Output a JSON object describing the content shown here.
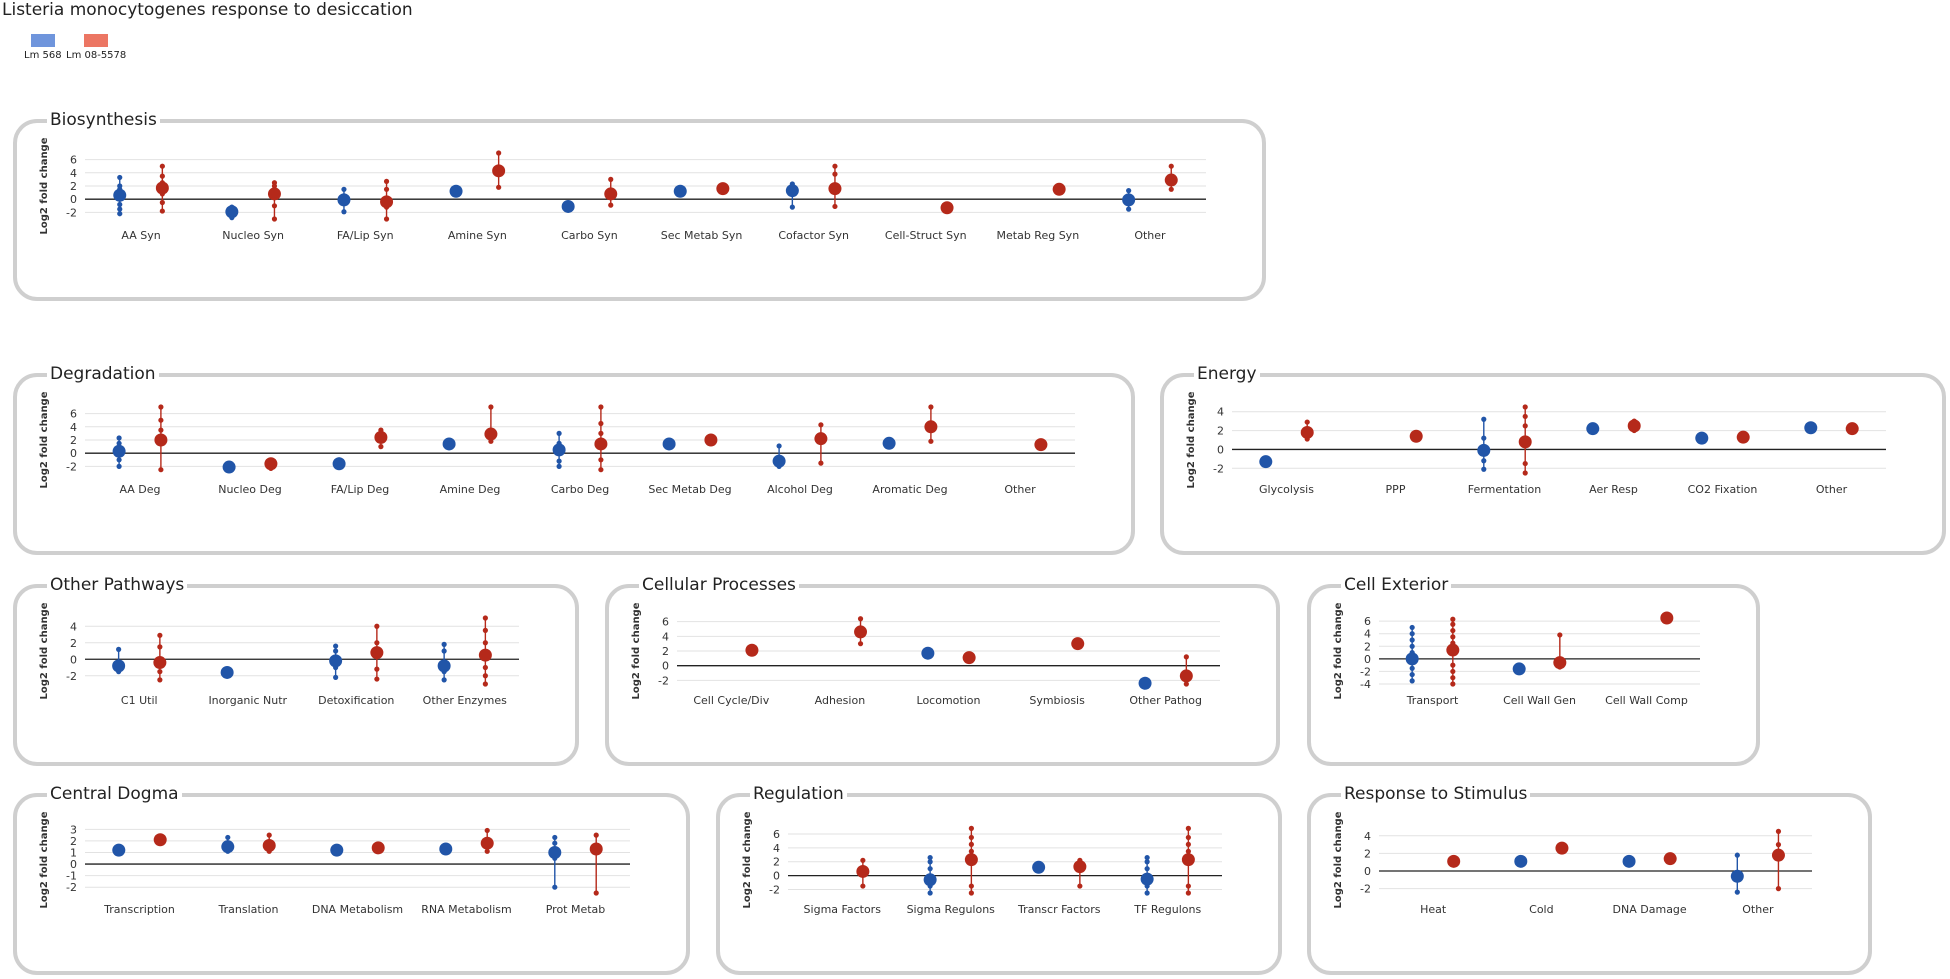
{
  "title": "Listeria monocytogenes response to desiccation",
  "colors": {
    "lm568": "#2155a8",
    "lm08": "#b5291a",
    "lm568_legend": "#6f95dc",
    "lm08_legend": "#ec7663",
    "grid": "#e2e2e2",
    "frame": "#cfcfcf"
  },
  "legend": [
    {
      "label": "Lm 568",
      "color": "#6f95dc"
    },
    {
      "label": "Lm 08-5578",
      "color": "#ec7663"
    }
  ],
  "chart_data": [
    {
      "type": "scatter",
      "title": "Biosynthesis",
      "ylabel": "Log2 fold change",
      "ylim": [
        -3,
        7
      ],
      "yticks": [
        -2,
        0,
        2,
        4,
        6
      ],
      "categories": [
        "AA Syn",
        "Nucleo Syn",
        "FA/Lip Syn",
        "Amine Syn",
        "Carbo Syn",
        "Sec Metab Syn",
        "Cofactor Syn",
        "Cell-Struct Syn",
        "Metab Reg Syn",
        "Other"
      ],
      "series": [
        {
          "name": "Lm 568",
          "values": [
            {
              "mean": 0.6,
              "points": [
                -2.2,
                -1.5,
                -0.8,
                0.0,
                0.5,
                1.0,
                1.5,
                2.0,
                3.3
              ]
            },
            {
              "mean": -1.9,
              "points": [
                -2.8,
                -1.2
              ]
            },
            {
              "mean": -0.1,
              "points": [
                -1.9,
                -0.6,
                0.5,
                1.5
              ]
            },
            {
              "mean": 1.2,
              "points": []
            },
            {
              "mean": -1.1,
              "points": []
            },
            {
              "mean": 1.2,
              "points": []
            },
            {
              "mean": 1.3,
              "points": [
                -1.2,
                2.3
              ]
            },
            null,
            null,
            {
              "mean": -0.1,
              "points": [
                -1.5,
                1.3
              ]
            }
          ]
        },
        {
          "name": "Lm 08-5578",
          "values": [
            {
              "mean": 1.7,
              "points": [
                -1.8,
                -0.5,
                0.8,
                2.5,
                3.5,
                5.0
              ]
            },
            {
              "mean": 0.8,
              "points": [
                -3.0,
                -1.0,
                2.0,
                2.5
              ]
            },
            {
              "mean": -0.4,
              "points": [
                -3.0,
                -1.2,
                1.5,
                2.7
              ]
            },
            {
              "mean": 4.3,
              "points": [
                1.8,
                7.0
              ]
            },
            {
              "mean": 0.8,
              "points": [
                -0.9,
                3.0
              ]
            },
            {
              "mean": 1.6,
              "points": []
            },
            {
              "mean": 1.6,
              "points": [
                -1.1,
                3.8,
                5.0
              ]
            },
            {
              "mean": -1.3,
              "points": []
            },
            {
              "mean": 1.5,
              "points": []
            },
            {
              "mean": 2.9,
              "points": [
                1.5,
                5.0
              ]
            }
          ]
        }
      ]
    },
    {
      "type": "scatter",
      "title": "Degradation",
      "ylabel": "Log2 fold change",
      "ylim": [
        -3,
        7
      ],
      "yticks": [
        -2,
        0,
        2,
        4,
        6
      ],
      "categories": [
        "AA Deg",
        "Nucleo Deg",
        "FA/Lip Deg",
        "Amine Deg",
        "Carbo Deg",
        "Sec Metab Deg",
        "Alcohol Deg",
        "Aromatic Deg",
        "Other"
      ],
      "series": [
        {
          "name": "Lm 568",
          "values": [
            {
              "mean": 0.3,
              "points": [
                -2.0,
                -1.0,
                0.8,
                1.5,
                2.3
              ]
            },
            {
              "mean": -2.1,
              "points": []
            },
            {
              "mean": -1.6,
              "points": [
                -2.0,
                -1.0
              ]
            },
            {
              "mean": 1.4,
              "points": []
            },
            {
              "mean": 0.5,
              "points": [
                -2.0,
                -1.2,
                1.5,
                3.0
              ]
            },
            {
              "mean": 1.4,
              "points": []
            },
            {
              "mean": -1.2,
              "points": [
                -2.0,
                1.1
              ]
            },
            {
              "mean": 1.5,
              "points": []
            },
            null
          ]
        },
        {
          "name": "Lm 08-5578",
          "values": [
            {
              "mean": 2.0,
              "points": [
                -2.5,
                3.5,
                5.0,
                7.0
              ]
            },
            {
              "mean": -1.6,
              "points": [
                -2.3,
                -1.1
              ]
            },
            {
              "mean": 2.4,
              "points": [
                1.0,
                3.5
              ]
            },
            {
              "mean": 2.9,
              "points": [
                1.8,
                7.0
              ]
            },
            {
              "mean": 1.4,
              "points": [
                -2.5,
                -1.0,
                3.0,
                4.5,
                7.0
              ]
            },
            {
              "mean": 2.0,
              "points": []
            },
            {
              "mean": 2.2,
              "points": [
                -1.5,
                4.3
              ]
            },
            {
              "mean": 4.0,
              "points": [
                1.8,
                7.0
              ]
            },
            {
              "mean": 1.3,
              "points": []
            }
          ]
        }
      ]
    },
    {
      "type": "scatter",
      "title": "Energy",
      "ylabel": "Log2 fold change",
      "ylim": [
        -2.5,
        4.5
      ],
      "yticks": [
        -2,
        0,
        2,
        4
      ],
      "categories": [
        "Glycolysis",
        "PPP",
        "Fermentation",
        "Aer Resp",
        "CO2 Fixation",
        "Other"
      ],
      "series": [
        {
          "name": "Lm 568",
          "values": [
            {
              "mean": -1.3,
              "points": []
            },
            null,
            {
              "mean": -0.1,
              "points": [
                -2.1,
                -1.2,
                1.2,
                3.2
              ]
            },
            {
              "mean": 2.2,
              "points": []
            },
            {
              "mean": 1.2,
              "points": []
            },
            {
              "mean": 2.3,
              "points": []
            }
          ]
        },
        {
          "name": "Lm 08-5578",
          "values": [
            {
              "mean": 1.8,
              "points": [
                1.1,
                2.9
              ]
            },
            {
              "mean": 1.4,
              "points": []
            },
            {
              "mean": 0.8,
              "points": [
                -2.5,
                -1.5,
                2.5,
                3.5,
                4.5
              ]
            },
            {
              "mean": 2.5,
              "points": [
                2.0,
                3.0
              ]
            },
            {
              "mean": 1.3,
              "points": []
            },
            {
              "mean": 2.2,
              "points": []
            }
          ]
        }
      ]
    },
    {
      "type": "scatter",
      "title": "Other Pathways",
      "ylabel": "Log2 fold change",
      "ylim": [
        -3,
        5
      ],
      "yticks": [
        -2,
        0,
        2,
        4
      ],
      "categories": [
        "C1 Util",
        "Inorganic Nutr",
        "Detoxification",
        "Other Enzymes"
      ],
      "series": [
        {
          "name": "Lm 568",
          "values": [
            {
              "mean": -0.8,
              "points": [
                -1.5,
                1.2
              ]
            },
            {
              "mean": -1.6,
              "points": []
            },
            {
              "mean": -0.2,
              "points": [
                -2.2,
                -1.0,
                1.0,
                1.6
              ]
            },
            {
              "mean": -0.8,
              "points": [
                -2.5,
                -1.5,
                1.0,
                1.8
              ]
            }
          ]
        },
        {
          "name": "Lm 08-5578",
          "values": [
            {
              "mean": -0.4,
              "points": [
                -2.5,
                -1.5,
                1.5,
                2.9
              ]
            },
            null,
            {
              "mean": 0.8,
              "points": [
                -2.4,
                -1.2,
                2.0,
                4.0
              ]
            },
            {
              "mean": 0.5,
              "points": [
                -3.0,
                -2.0,
                -1.0,
                2.0,
                3.5,
                5.0
              ]
            }
          ]
        }
      ]
    },
    {
      "type": "scatter",
      "title": "Cellular Processes",
      "ylabel": "Log2 fold change",
      "ylim": [
        -2.5,
        6.5
      ],
      "yticks": [
        -2,
        0,
        2,
        4,
        6
      ],
      "categories": [
        "Cell Cycle/Div",
        "Adhesion",
        "Locomotion",
        "Symbiosis",
        "Other Pathog"
      ],
      "series": [
        {
          "name": "Lm 568",
          "values": [
            null,
            null,
            {
              "mean": 1.7,
              "points": []
            },
            null,
            {
              "mean": -2.4,
              "points": []
            }
          ]
        },
        {
          "name": "Lm 08-5578",
          "values": [
            {
              "mean": 2.1,
              "points": []
            },
            {
              "mean": 4.6,
              "points": [
                3.0,
                6.4
              ]
            },
            {
              "mean": 1.1,
              "points": []
            },
            {
              "mean": 3.0,
              "points": []
            },
            {
              "mean": -1.4,
              "points": [
                -2.5,
                1.2
              ]
            }
          ]
        }
      ]
    },
    {
      "type": "scatter",
      "title": "Cell Exterior",
      "ylabel": "Log2 fold change",
      "ylim": [
        -4,
        6.5
      ],
      "yticks": [
        -4,
        -2,
        0,
        2,
        4,
        6
      ],
      "categories": [
        "Transport",
        "Cell Wall Gen",
        "Cell Wall Comp"
      ],
      "series": [
        {
          "name": "Lm 568",
          "values": [
            {
              "mean": 0.0,
              "points": [
                -3.5,
                -2.5,
                -1.5,
                -0.5,
                1.0,
                2.0,
                3.0,
                4.0,
                5.0
              ]
            },
            {
              "mean": -1.6,
              "points": []
            },
            null
          ]
        },
        {
          "name": "Lm 08-5578",
          "values": [
            {
              "mean": 1.4,
              "points": [
                -4.0,
                -3.0,
                -2.0,
                -1.0,
                2.5,
                3.5,
                4.5,
                5.5,
                6.3
              ]
            },
            {
              "mean": -0.6,
              "points": [
                -1.3,
                3.8
              ]
            },
            {
              "mean": 6.5,
              "points": []
            }
          ]
        }
      ]
    },
    {
      "type": "scatter",
      "title": "Central Dogma",
      "ylabel": "Log2 fold change",
      "ylim": [
        -2.5,
        3.2
      ],
      "yticks": [
        -2,
        -1,
        0,
        1,
        2,
        3
      ],
      "categories": [
        "Transcription",
        "Translation",
        "DNA Metabolism",
        "RNA Metabolism",
        "Prot Metab"
      ],
      "series": [
        {
          "name": "Lm 568",
          "values": [
            {
              "mean": 1.2,
              "points": []
            },
            {
              "mean": 1.5,
              "points": [
                1.1,
                2.3
              ]
            },
            {
              "mean": 1.2,
              "points": []
            },
            {
              "mean": 1.3,
              "points": []
            },
            {
              "mean": 1.0,
              "points": [
                -2.0,
                0.5,
                1.8,
                2.3
              ]
            }
          ]
        },
        {
          "name": "Lm 08-5578",
          "values": [
            {
              "mean": 2.1,
              "points": []
            },
            {
              "mean": 1.6,
              "points": [
                1.1,
                2.5
              ]
            },
            {
              "mean": 1.4,
              "points": []
            },
            {
              "mean": 1.8,
              "points": [
                1.1,
                2.9
              ]
            },
            {
              "mean": 1.3,
              "points": [
                -2.5,
                2.5
              ]
            }
          ]
        }
      ]
    },
    {
      "type": "scatter",
      "title": "Regulation",
      "ylabel": "Log2 fold change",
      "ylim": [
        -2.5,
        7
      ],
      "yticks": [
        -2,
        0,
        2,
        4,
        6
      ],
      "categories": [
        "Sigma Factors",
        "Sigma Regulons",
        "Transcr Factors",
        "TF Regulons"
      ],
      "series": [
        {
          "name": "Lm 568",
          "values": [
            null,
            {
              "mean": -0.6,
              "points": [
                -2.5,
                -1.5,
                1.0,
                2.0,
                2.6
              ]
            },
            {
              "mean": 1.2,
              "points": []
            },
            {
              "mean": -0.5,
              "points": [
                -2.5,
                -1.5,
                1.0,
                2.0,
                2.6
              ]
            }
          ]
        },
        {
          "name": "Lm 08-5578",
          "values": [
            {
              "mean": 0.6,
              "points": [
                -1.5,
                2.2
              ]
            },
            {
              "mean": 2.3,
              "points": [
                -2.5,
                -1.5,
                3.5,
                4.5,
                5.5,
                6.8
              ]
            },
            {
              "mean": 1.3,
              "points": [
                -1.5,
                2.2
              ]
            },
            {
              "mean": 2.3,
              "points": [
                -2.5,
                -1.5,
                3.5,
                4.5,
                5.5,
                6.8
              ]
            }
          ]
        }
      ]
    },
    {
      "type": "scatter",
      "title": "Response to Stimulus",
      "ylabel": "Log2 fold change",
      "ylim": [
        -2.5,
        5
      ],
      "yticks": [
        -2,
        0,
        2,
        4
      ],
      "categories": [
        "Heat",
        "Cold",
        "DNA Damage",
        "Other"
      ],
      "series": [
        {
          "name": "Lm 568",
          "values": [
            null,
            {
              "mean": 1.1,
              "points": []
            },
            {
              "mean": 1.1,
              "points": []
            },
            {
              "mean": -0.6,
              "points": [
                -2.4,
                1.8
              ]
            }
          ]
        },
        {
          "name": "Lm 08-5578",
          "values": [
            {
              "mean": 1.1,
              "points": []
            },
            {
              "mean": 2.6,
              "points": []
            },
            {
              "mean": 1.4,
              "points": []
            },
            {
              "mean": 1.8,
              "points": [
                -2.0,
                3.0,
                4.5
              ]
            }
          ]
        }
      ]
    }
  ]
}
